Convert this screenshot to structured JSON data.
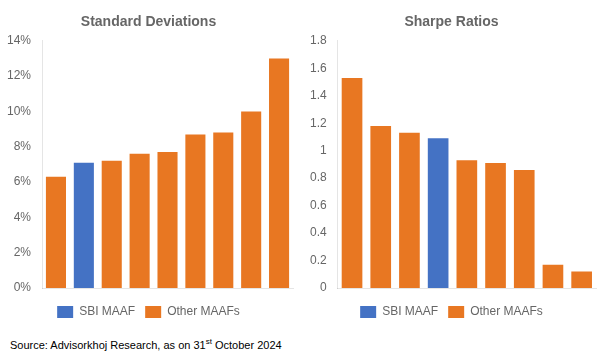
{
  "chart_data": [
    {
      "type": "bar",
      "title": "Standard Deviations",
      "categories": [
        null,
        null,
        null,
        null,
        null,
        null,
        null,
        null,
        null
      ],
      "series": [
        {
          "name": "SBI MAAF",
          "color": "#4472C4",
          "values": [
            null,
            0.071,
            null,
            null,
            null,
            null,
            null,
            null,
            null
          ]
        },
        {
          "name": "Other MAAFs",
          "color": "#E87722",
          "values": [
            0.063,
            null,
            0.072,
            0.076,
            0.077,
            0.087,
            0.088,
            0.1,
            0.13
          ]
        }
      ],
      "ylim": [
        0,
        0.14
      ],
      "yticks": [
        {
          "value": 0.0,
          "label": "0%"
        },
        {
          "value": 0.02,
          "label": "2%"
        },
        {
          "value": 0.04,
          "label": "4%"
        },
        {
          "value": 0.06,
          "label": "6%"
        },
        {
          "value": 0.08,
          "label": "8%"
        },
        {
          "value": 0.1,
          "label": "10%"
        },
        {
          "value": 0.12,
          "label": "12%"
        },
        {
          "value": 0.14,
          "label": "14%"
        }
      ],
      "grid": false,
      "legend": "bottom",
      "tick_labels": "y"
    },
    {
      "type": "bar",
      "title": "Sharpe Ratios",
      "categories": [
        null,
        null,
        null,
        null,
        null,
        null,
        null,
        null,
        null
      ],
      "series": [
        {
          "name": "SBI MAAF",
          "color": "#4472C4",
          "values": [
            null,
            null,
            null,
            1.09,
            null,
            null,
            null,
            null,
            null
          ]
        },
        {
          "name": "Other MAAFs",
          "color": "#E87722",
          "values": [
            1.53,
            1.18,
            1.13,
            null,
            0.93,
            0.91,
            0.86,
            0.17,
            0.12
          ]
        }
      ],
      "ylim": [
        0,
        1.8
      ],
      "yticks": [
        0,
        0.2,
        0.4,
        0.6,
        0.8,
        1,
        1.2,
        1.4,
        1.6,
        1.8
      ],
      "grid": false,
      "legend": "bottom",
      "tick_labels": "y"
    }
  ],
  "source": {
    "text": "Source: Advisorkhoj Research, as on 31",
    "superscript": "st",
    "text_end": " October 2024"
  }
}
